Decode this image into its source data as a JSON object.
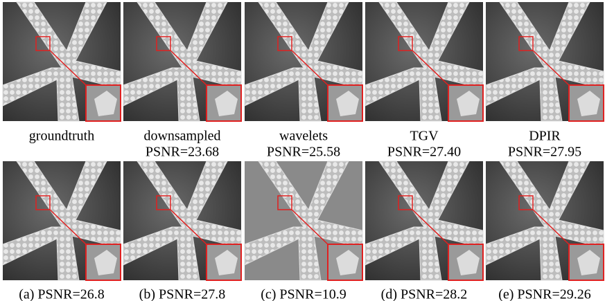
{
  "rows": [
    [
      {
        "lines": [
          "groundtruth"
        ]
      },
      {
        "lines": [
          "downsampled",
          "PSNR=23.68"
        ]
      },
      {
        "lines": [
          "wavelets",
          "PSNR=25.58"
        ]
      },
      {
        "lines": [
          "TGV",
          "PSNR=27.40"
        ]
      },
      {
        "lines": [
          "DPIR",
          "PSNR=27.95"
        ]
      }
    ],
    [
      {
        "lines": [
          "(a) PSNR=26.8"
        ]
      },
      {
        "lines": [
          "(b) PSNR=27.8"
        ]
      },
      {
        "lines": [
          "(c) PSNR=10.9"
        ]
      },
      {
        "lines": [
          "(d) PSNR=28.2"
        ]
      },
      {
        "lines": [
          "(e) PSNR=29.26"
        ]
      }
    ]
  ]
}
